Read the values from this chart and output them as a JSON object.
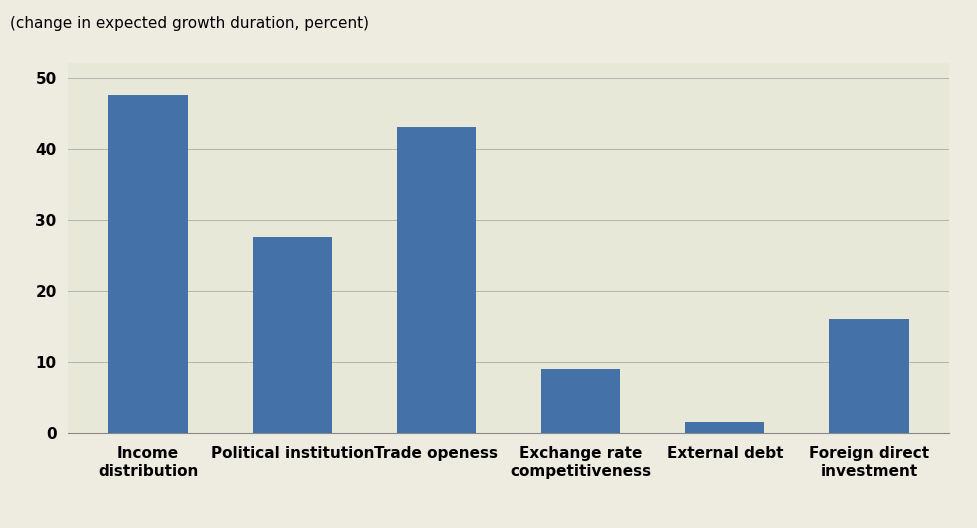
{
  "categories": [
    "Income\ndistribution",
    "Political institution",
    "Trade openess",
    "Exchange rate\ncompetitiveness",
    "External debt",
    "Foreign direct\ninvestment"
  ],
  "values": [
    47.5,
    27.5,
    43.0,
    9.0,
    1.5,
    16.0
  ],
  "bar_color": "#4472a8",
  "background_color": "#eeece1",
  "plot_area_color": "#e8e8d8",
  "ylabel": "(change in expected growth duration, percent)",
  "ylim": [
    0,
    52
  ],
  "yticks": [
    0,
    10,
    20,
    30,
    40,
    50
  ],
  "tick_fontsize": 11,
  "ylabel_fontsize": 11,
  "bar_width": 0.55,
  "grid_color": "#aaaaaa",
  "spine_color": "#888888"
}
